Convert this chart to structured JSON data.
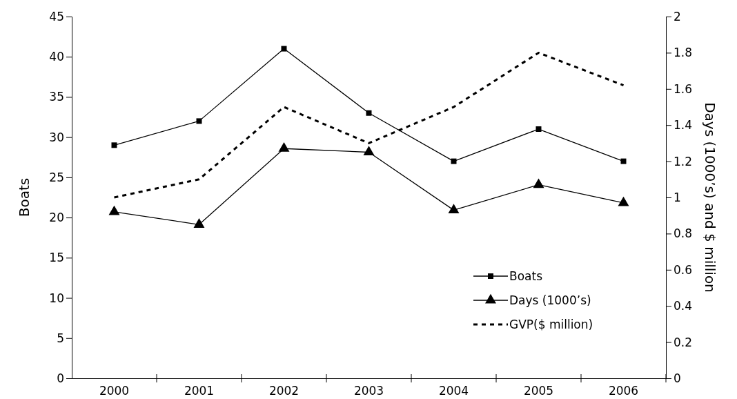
{
  "chart_data": {
    "type": "line",
    "ylabel": "Boats",
    "y2label": "Days (1000’s) and $ million",
    "categories": [
      "2000",
      "2001",
      "2002",
      "2003",
      "2004",
      "2005",
      "2006"
    ],
    "series": [
      {
        "name": "Boats",
        "color": "#000000",
        "marker": "square",
        "line_style": "solid",
        "values": [
          29,
          32,
          41,
          33,
          27,
          31,
          27
        ]
      },
      {
        "name": "Days (1000’s)",
        "color": "#000000",
        "marker": "triangle",
        "line_style": "solid",
        "axis": "y2",
        "values": [
          0.92,
          0.85,
          1.27,
          1.25,
          0.93,
          1.07,
          0.97
        ]
      },
      {
        "name": "GVP($ million)",
        "color": "#000000",
        "marker": "none",
        "line_style": "dashed",
        "axis": "y2",
        "values": [
          1.0,
          1.1,
          1.5,
          1.3,
          1.5,
          1.8,
          1.62
        ]
      }
    ],
    "ylim": [
      0,
      45
    ],
    "yticks": [
      0,
      5,
      10,
      15,
      20,
      25,
      30,
      35,
      40,
      45
    ],
    "y2lim": [
      0,
      2
    ],
    "y2ticks": [
      0,
      0.2,
      0.4,
      0.6,
      0.8,
      1,
      1.2,
      1.4,
      1.6,
      1.8,
      2
    ],
    "grid": false,
    "legend": "bottom right"
  }
}
